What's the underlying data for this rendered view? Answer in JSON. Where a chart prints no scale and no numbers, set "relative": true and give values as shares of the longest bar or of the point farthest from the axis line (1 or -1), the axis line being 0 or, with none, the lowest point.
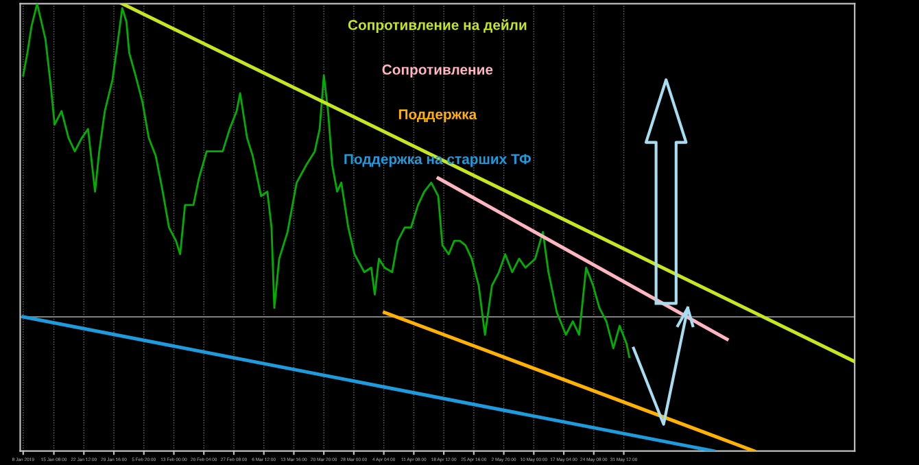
{
  "chart_data": {
    "type": "line",
    "relative": true,
    "grid": "x",
    "legend": false,
    "tick_labels": "x",
    "marker": "none",
    "line_style": "solid",
    "xlim": [
      "2019-01-07T07:00",
      "2019-07-25T16:00"
    ],
    "xticks": [
      {
        "value": "2019-01-08T00:00",
        "label": "8 Jan 2019"
      },
      {
        "value": "2019-01-15T08:00",
        "label": "15 Jan 08:00"
      },
      {
        "value": "2019-01-22T12:00",
        "label": "22 Jan 12:00"
      },
      {
        "value": "2019-01-29T16:00",
        "label": "29 Jan 16:00"
      },
      {
        "value": "2019-02-05T20:00",
        "label": "5 Feb 20:00"
      },
      {
        "value": "2019-02-13T00:00",
        "label": "13 Feb 00:00"
      },
      {
        "value": "2019-02-20T04:00",
        "label": "20 Feb 04:00"
      },
      {
        "value": "2019-02-27T08:00",
        "label": "27 Feb 08:00"
      },
      {
        "value": "2019-03-06T12:00",
        "label": "6 Mar 12:00"
      },
      {
        "value": "2019-03-13T16:00",
        "label": "13 Mar 16:00"
      },
      {
        "value": "2019-03-20T20:00",
        "label": "20 Mar 20:00"
      },
      {
        "value": "2019-03-28T00:00",
        "label": "28 Mar 00:00"
      },
      {
        "value": "2019-04-04T04:00",
        "label": "4 Apr 04:00"
      },
      {
        "value": "2019-04-11T08:00",
        "label": "11 Apr 08:00"
      },
      {
        "value": "2019-04-18T12:00",
        "label": "18 Apr 12:00"
      },
      {
        "value": "2019-04-25T16:00",
        "label": "25 Apr 16:00"
      },
      {
        "value": "2019-05-02T20:00",
        "label": "2 May 20:00"
      },
      {
        "value": "2019-05-10T00:00",
        "label": "10 May 00:00"
      },
      {
        "value": "2019-05-17T04:00",
        "label": "17 May 04:00"
      },
      {
        "value": "2019-05-24T08:00",
        "label": "24 May 08:00"
      },
      {
        "value": "2019-05-31T12:00",
        "label": "31 May 12:00"
      }
    ],
    "ref_lines": [
      {
        "axis": "y",
        "value": 0.3,
        "color": "#808080"
      }
    ],
    "series": [
      {
        "color": "#00b000",
        "x": [
          "2019-01-08T00:00",
          "2019-01-09T00:00",
          "2019-01-10T00:00",
          "2019-01-11T08:00",
          "2019-01-12T08:00",
          "2019-01-13T08:00",
          "2019-01-14T16:00",
          "2019-01-15T12:00",
          "2019-01-17T04:00",
          "2019-01-18T20:00",
          "2019-01-20T08:00",
          "2019-01-22T00:00",
          "2019-01-23T12:00",
          "2019-01-25T04:00",
          "2019-01-26T04:00",
          "2019-01-27T12:00",
          "2019-01-29T08:00",
          "2019-01-30T16:00",
          "2019-01-31T16:00",
          "2019-02-01T16:00",
          "2019-02-02T08:00",
          "2019-02-03T20:00",
          "2019-02-05T12:00",
          "2019-02-07T00:00",
          "2019-02-08T16:00",
          "2019-02-10T08:00",
          "2019-02-11T20:00",
          "2019-02-13T12:00",
          "2019-02-14T12:00",
          "2019-02-15T16:00",
          "2019-02-17T16:00",
          "2019-02-19T00:00",
          "2019-02-20T20:00",
          "2019-02-23T04:00",
          "2019-02-24T16:00",
          "2019-02-26T08:00",
          "2019-02-28T00:00",
          "2019-02-28T20:00",
          "2019-03-02T12:00",
          "2019-03-03T20:00",
          "2019-03-05T20:00",
          "2019-03-07T08:00",
          "2019-03-08T08:00",
          "2019-03-09T00:00",
          "2019-03-10T04:00",
          "2019-03-12T04:00",
          "2019-03-14T08:00",
          "2019-03-16T16:00",
          "2019-03-18T16:00",
          "2019-03-19T20:00",
          "2019-03-20T20:00",
          "2019-03-21T20:00",
          "2019-03-22T20:00",
          "2019-03-24T00:00",
          "2019-03-25T00:00",
          "2019-03-26T16:00",
          "2019-03-28T04:00",
          "2019-03-30T12:00",
          "2019-04-01T04:00",
          "2019-04-02T00:00",
          "2019-04-03T00:00",
          "2019-04-04T08:00",
          "2019-04-06T04:00",
          "2019-04-07T12:00",
          "2019-04-09T04:00",
          "2019-04-10T16:00",
          "2019-04-12T08:00",
          "2019-04-13T20:00",
          "2019-04-15T12:00",
          "2019-04-17T04:00",
          "2019-04-18T04:00",
          "2019-04-19T16:00",
          "2019-04-21T00:00",
          "2019-04-22T08:00",
          "2019-04-23T16:00",
          "2019-04-25T04:00",
          "2019-04-26T20:00",
          "2019-04-28T08:00",
          "2019-04-30T00:00",
          "2019-05-01T16:00",
          "2019-05-03T04:00",
          "2019-05-04T20:00",
          "2019-05-06T12:00",
          "2019-05-08T00:00",
          "2019-05-10T08:00",
          "2019-05-12T04:00",
          "2019-05-13T12:00",
          "2019-05-15T12:00",
          "2019-05-17T16:00",
          "2019-05-19T08:00",
          "2019-05-20T20:00",
          "2019-05-22T12:00",
          "2019-05-24T04:00",
          "2019-05-25T16:00",
          "2019-05-27T08:00",
          "2019-05-29T00:00",
          "2019-05-30T12:00",
          "2019-06-01T04:00",
          "2019-06-01T20:00"
        ],
        "values": [
          0.84,
          0.89,
          0.95,
          1,
          0.96,
          0.92,
          0.81,
          0.73,
          0.76,
          0.7,
          0.67,
          0.7,
          0.72,
          0.58,
          0.67,
          0.76,
          0.83,
          0.92,
          0.99,
          0.96,
          0.89,
          0.84,
          0.78,
          0.7,
          0.66,
          0.58,
          0.5,
          0.47,
          0.44,
          0.55,
          0.55,
          0.61,
          0.67,
          0.67,
          0.67,
          0.72,
          0.76,
          0.8,
          0.7,
          0.66,
          0.57,
          0.58,
          0.5,
          0.32,
          0.43,
          0.49,
          0.6,
          0.64,
          0.67,
          0.72,
          0.84,
          0.76,
          0.64,
          0.58,
          0.6,
          0.5,
          0.44,
          0.4,
          0.41,
          0.35,
          0.43,
          0.41,
          0.4,
          0.47,
          0.5,
          0.5,
          0.55,
          0.58,
          0.6,
          0.57,
          0.46,
          0.44,
          0.47,
          0.47,
          0.46,
          0.43,
          0.37,
          0.26,
          0.37,
          0.4,
          0.44,
          0.4,
          0.43,
          0.41,
          0.43,
          0.49,
          0.4,
          0.31,
          0.26,
          0.29,
          0.26,
          0.41,
          0.37,
          0.32,
          0.29,
          0.23,
          0.28,
          0.24,
          0.21
        ]
      },
      {
        "name": "Сопротивление на дейли",
        "color": "#c8e61e",
        "x": [
          "2019-01-31T16:00",
          "2019-07-25T16:00"
        ],
        "values": [
          1.0,
          0.2
        ]
      },
      {
        "name": "Сопротивление",
        "color": "#ffb6c1",
        "x": [
          "2019-04-17T04:00",
          "2019-06-25T04:00"
        ],
        "values": [
          0.61,
          0.25
        ]
      },
      {
        "name": "Поддержка",
        "color": "#ffb300",
        "x": [
          "2019-04-04T08:00",
          "2019-07-01T16:00"
        ],
        "values": [
          0.31,
          0
        ]
      },
      {
        "name": "Поддержка на старших ТФ",
        "color": "#1e9bdc",
        "x": [
          "2019-01-08T00:00",
          "2019-06-22T00:00"
        ],
        "values": [
          0.3,
          0
        ]
      }
    ]
  }
}
